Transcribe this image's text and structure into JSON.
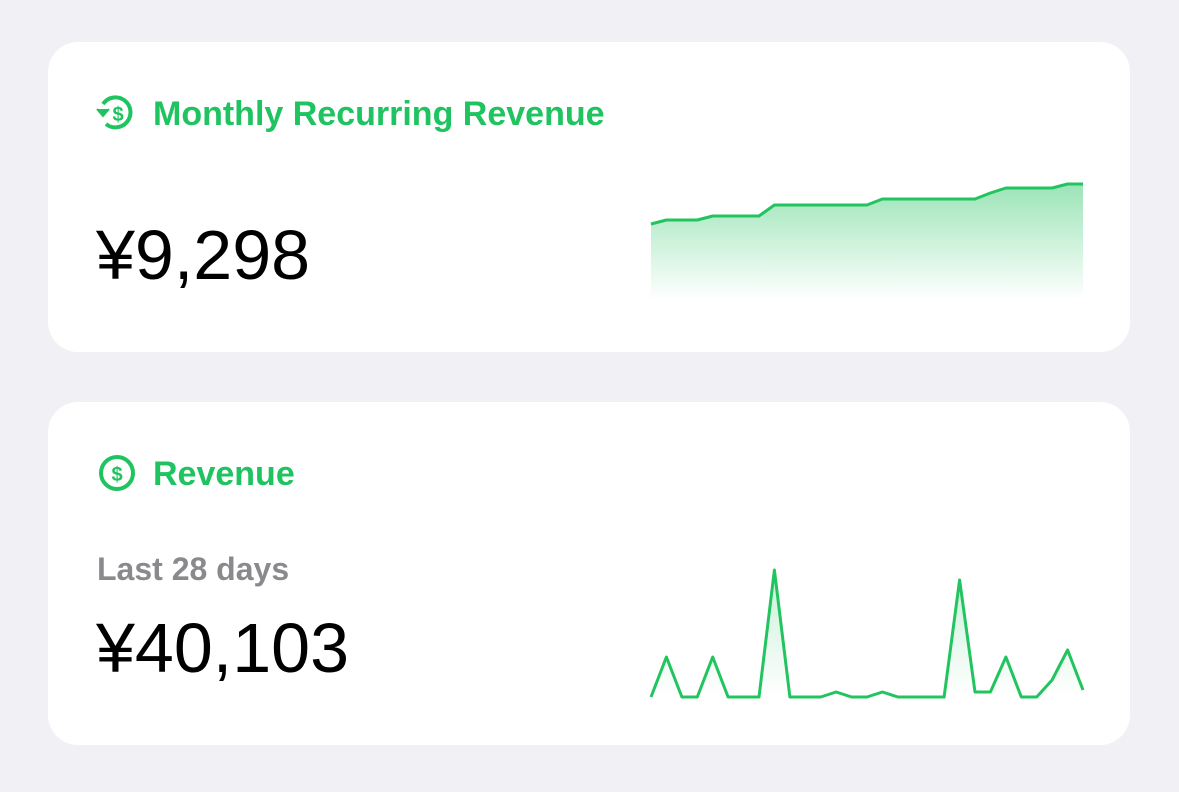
{
  "cards": [
    {
      "title": "Monthly Recurring Revenue",
      "value": "¥9,298",
      "sparkline": {
        "type": "area",
        "color": "#21c45f",
        "values": [
          76,
          80,
          80,
          80,
          84,
          84,
          84,
          84,
          95,
          95,
          95,
          95,
          95,
          95,
          95,
          101,
          101,
          101,
          101,
          101,
          101,
          101,
          107,
          112,
          112,
          112,
          112,
          116,
          116
        ]
      }
    },
    {
      "title": "Revenue",
      "subtitle": "Last 28 days",
      "value": "¥40,103",
      "sparkline": {
        "type": "line",
        "color": "#21c45f",
        "values": [
          0,
          40,
          0,
          0,
          40,
          0,
          0,
          0,
          127,
          0,
          0,
          0,
          5,
          0,
          0,
          5,
          0,
          0,
          0,
          0,
          117,
          5,
          5,
          40,
          0,
          0,
          17,
          47,
          7
        ]
      }
    }
  ]
}
